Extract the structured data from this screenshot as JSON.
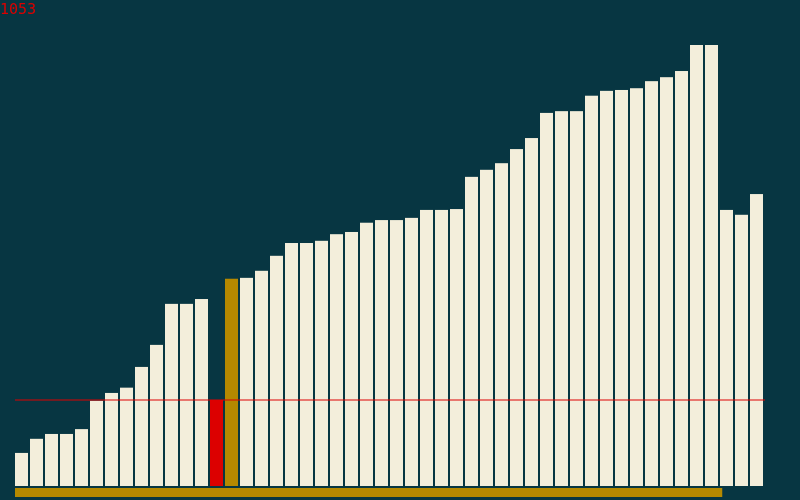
{
  "counter_text": "1053",
  "colors": {
    "background": "#073642",
    "bar": "#f3eedb",
    "highlight_red": "#dc0000",
    "highlight_gold": "#b58900",
    "threshold_line": "#dc0000",
    "progress_bar": "#b58900"
  },
  "chart_data": {
    "type": "bar",
    "title": "",
    "xlabel": "",
    "ylabel": "",
    "ylim": [
      0,
      100
    ],
    "grid": false,
    "legend": "none",
    "values": [
      7.5,
      10.7,
      11.8,
      11.8,
      12.9,
      19.3,
      21.1,
      22.3,
      27.0,
      32.0,
      41.3,
      41.3,
      42.4,
      19.5,
      47.0,
      47.2,
      48.8,
      52.2,
      55.1,
      55.1,
      55.6,
      57.1,
      57.6,
      59.7,
      60.3,
      60.3,
      60.8,
      62.6,
      62.6,
      62.8,
      70.1,
      71.7,
      73.2,
      76.4,
      78.9,
      84.6,
      85.0,
      85.0,
      88.5,
      89.6,
      89.8,
      90.2,
      91.8,
      92.7,
      94.1,
      100.0,
      100.0,
      62.6,
      61.5,
      66.2
    ],
    "highlight": {
      "red_index": 13,
      "gold_index": 14
    },
    "threshold": 19.5,
    "progress": 0.943
  }
}
